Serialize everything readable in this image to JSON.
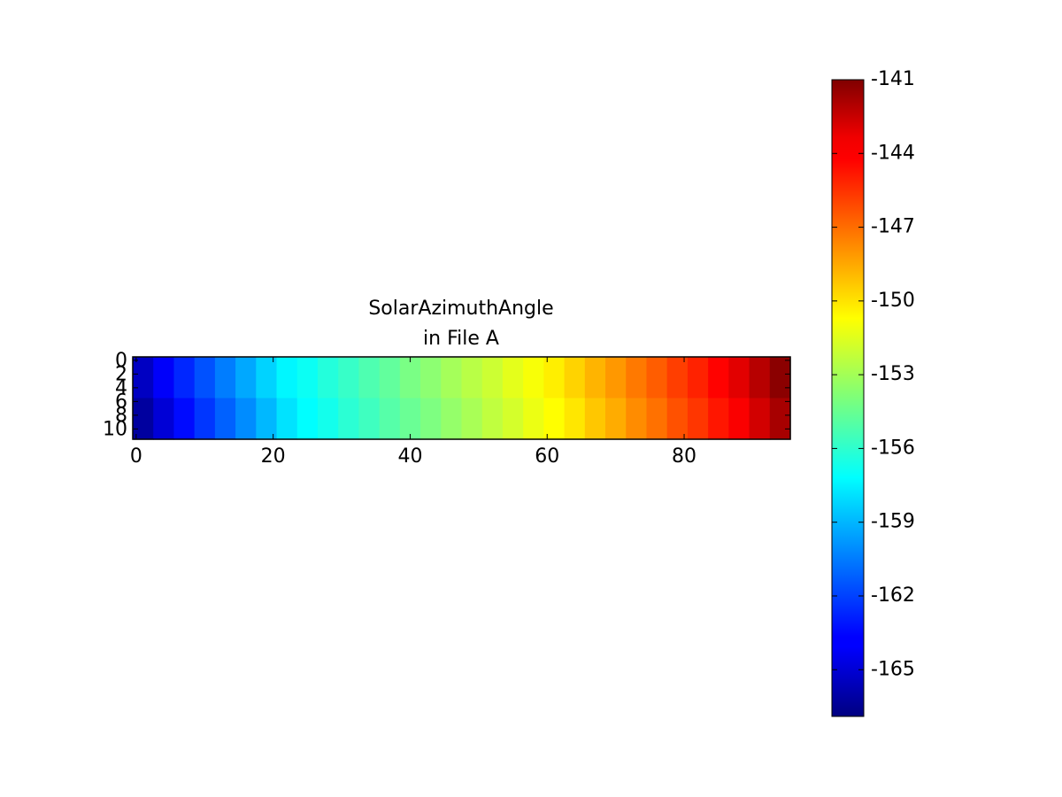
{
  "chart_data": {
    "type": "heatmap",
    "title": [
      "SolarAzimuthAngle",
      "in File A"
    ],
    "x_edges": [
      -0.5,
      2.5,
      5.5,
      8.5,
      11.5,
      14.5,
      17.5,
      20.5,
      23.5,
      26.5,
      29.5,
      32.5,
      35.5,
      38.5,
      41.5,
      44.5,
      47.5,
      50.5,
      53.5,
      56.5,
      59.5,
      62.5,
      65.5,
      68.5,
      71.5,
      74.5,
      77.5,
      80.5,
      83.5,
      86.5,
      89.5,
      92.5,
      95.5
    ],
    "y_edges": [
      -0.5,
      5.5,
      11.5
    ],
    "values": [
      [
        -165.2,
        -163.8,
        -162.7,
        -161.6,
        -160.5,
        -159.4,
        -158.3,
        -157.4,
        -156.9,
        -156.3,
        -155.8,
        -155.2,
        -154.7,
        -154.1,
        -153.6,
        -153.0,
        -152.5,
        -152.0,
        -151.4,
        -150.9,
        -150.3,
        -149.6,
        -148.8,
        -148.1,
        -147.3,
        -146.6,
        -145.8,
        -145.1,
        -144.3,
        -143.5,
        -142.4,
        -141.3
      ],
      [
        -166.1,
        -164.7,
        -163.4,
        -162.3,
        -161.2,
        -160.1,
        -159.0,
        -157.9,
        -157.2,
        -156.7,
        -156.1,
        -155.6,
        -155.0,
        -154.5,
        -154.0,
        -153.4,
        -152.9,
        -152.3,
        -151.8,
        -151.2,
        -150.7,
        -150.1,
        -149.3,
        -148.6,
        -147.8,
        -147.1,
        -146.3,
        -145.6,
        -144.8,
        -144.1,
        -143.1,
        -142.0
      ]
    ],
    "colormap": "jet",
    "xlim": [
      -0.5,
      95.5
    ],
    "xticks": [
      0,
      20,
      40,
      60,
      80
    ],
    "ylim": [
      11.5,
      -0.5
    ],
    "yticks": [
      0,
      2,
      4,
      6,
      8,
      10
    ],
    "clim": [
      -166.9,
      -141
    ],
    "cticks": [
      -141,
      -144,
      -147,
      -150,
      -153,
      -156,
      -159,
      -162,
      -165
    ]
  }
}
